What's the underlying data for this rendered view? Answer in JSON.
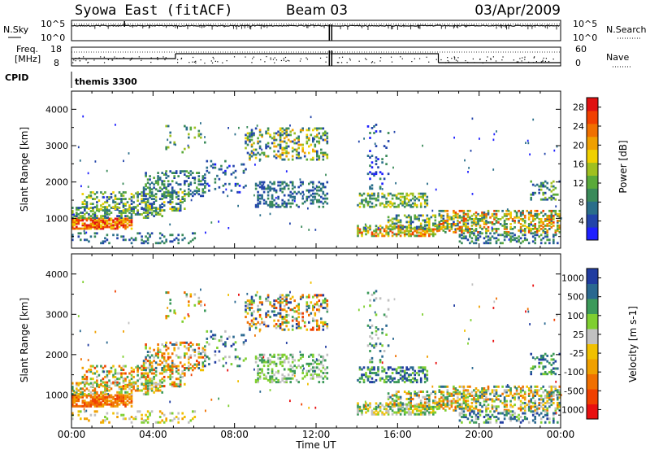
{
  "header": {
    "station": "Syowa East (fitACF)",
    "beam": "Beam 03",
    "date": "03/Apr/2009"
  },
  "top_panel": {
    "left_label": "N.Sky",
    "right_label": "N.Search",
    "left_ticks": [
      "10^5",
      "10^0"
    ],
    "right_ticks": [
      "10^5",
      "10^0"
    ]
  },
  "freq_panel": {
    "left_label_1": "Freq.",
    "left_label_2": "[MHz]",
    "right_label": "Nave",
    "left_ticks": [
      "18",
      "8"
    ],
    "right_ticks": [
      "60",
      "0"
    ]
  },
  "cpid": {
    "label": "CPID",
    "value": "themis 3300"
  },
  "colors": {
    "power_scale": [
      "#1e20ff",
      "#2244aa",
      "#2a6e8a",
      "#3a8a5a",
      "#5aaa3a",
      "#a0c020",
      "#f0d000",
      "#f0a000",
      "#f07000",
      "#f04000",
      "#e01010"
    ],
    "velocity_scale": [
      "#e81010",
      "#f04000",
      "#f07000",
      "#f0a000",
      "#f0c000",
      "#c0c0c0",
      "#7fcf30",
      "#3c9a5a",
      "#2a6890",
      "#203ca0"
    ]
  },
  "chart_data": [
    {
      "type": "heatmap",
      "title": "",
      "xlabel": "",
      "ylabel": "Slant Range [km]",
      "xlim": [
        0,
        24
      ],
      "ylim": [
        180,
        4500
      ],
      "x_ticks": [
        "00:00",
        "04:00",
        "08:00",
        "12:00",
        "16:00",
        "20:00",
        "00:00"
      ],
      "y_ticks": [
        "1000",
        "2000",
        "3000",
        "4000"
      ],
      "colorbar_label": "Power [dB]",
      "colorbar_ticks": [
        "4",
        "8",
        "12",
        "16",
        "20",
        "24",
        "28"
      ],
      "colorbar_range": [
        0,
        30
      ],
      "data_gap": [
        12.6,
        13.9
      ]
    },
    {
      "type": "heatmap",
      "title": "",
      "xlabel": "Time UT",
      "ylabel": "Slant Range [km]",
      "xlim": [
        0,
        24
      ],
      "ylim": [
        180,
        4500
      ],
      "x_ticks": [
        "00:00",
        "04:00",
        "08:00",
        "12:00",
        "16:00",
        "20:00",
        "00:00"
      ],
      "y_ticks": [
        "1000",
        "2000",
        "3000",
        "4000"
      ],
      "colorbar_label": "Velocity [m s-1]",
      "colorbar_ticks": [
        "1000",
        "500",
        "100",
        "25",
        "-25",
        "-100",
        "-500",
        "-1000"
      ],
      "data_gap": [
        12.6,
        13.9
      ]
    }
  ]
}
